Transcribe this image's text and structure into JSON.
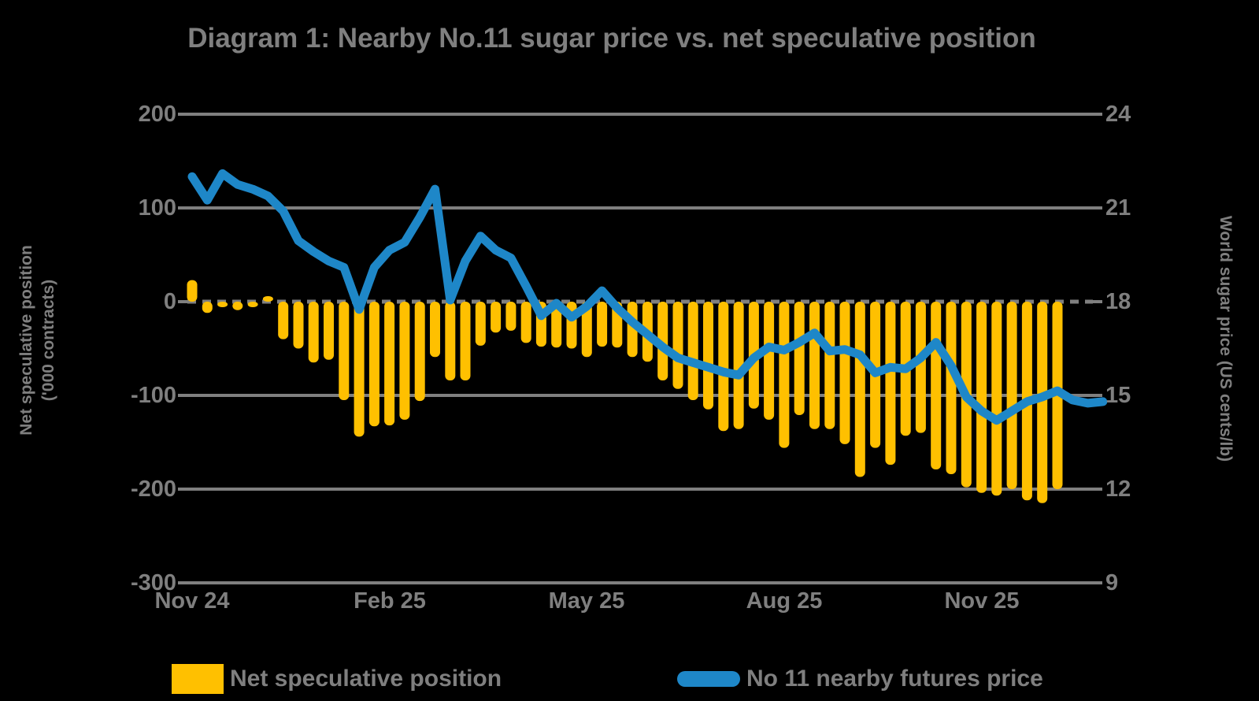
{
  "title": "Diagram 1: Nearby No.11 sugar price vs. net speculative position",
  "left_axis": {
    "title_line1": "Net speculative position",
    "title_line2": "('000 contracts)",
    "ticks": [
      "200",
      "100",
      "0",
      "-100",
      "-200",
      "-300"
    ]
  },
  "right_axis": {
    "title": "World sugar price (US cents/lb)",
    "ticks": [
      "24",
      "21",
      "18",
      "15",
      "12",
      "9"
    ]
  },
  "x_axis": {
    "labels": [
      "Nov 24",
      "Feb 25",
      "May 25",
      "Aug 25",
      "Nov 25"
    ]
  },
  "legend": [
    {
      "label": "Net speculative position",
      "type": "bar"
    },
    {
      "label": "No 11 nearby futures price",
      "type": "line"
    }
  ],
  "colors": {
    "background": "#000000",
    "bars": "#FFC000",
    "line": "#1E87C8",
    "grid": "#7F7F7F",
    "text": "#7F7F7F"
  },
  "chart_data": {
    "type": "bar",
    "subtype": "bar-and-line-dual-axis",
    "frequency": "weekly",
    "x_start": "Nov 24",
    "x_end": "Dec 25",
    "x_label_positions": [
      0,
      13,
      26,
      39,
      52
    ],
    "y_left": {
      "min": -300,
      "max": 200,
      "step": 100,
      "label": "Net speculative position ('000 contracts)"
    },
    "y_right": {
      "min": 9,
      "max": 24,
      "step": 3,
      "label": "World sugar price (US cents/lb)"
    },
    "grid": "horizontal-solid, zero-line-dashed",
    "legend_position": "bottom",
    "bar_series": {
      "name": "Net speculative position",
      "unit": "'000 contracts",
      "axis": "left",
      "values": [
        23,
        -12,
        -2,
        -9,
        -3,
        5,
        -40,
        -50,
        -65,
        -62,
        -105,
        -144,
        -133,
        -132,
        -126,
        -106,
        -59,
        -84,
        -84,
        -47,
        -33,
        -31,
        -44,
        -48,
        -49,
        -50,
        -59,
        -48,
        -49,
        -59,
        -64,
        -84,
        -93,
        -105,
        -115,
        -138,
        -136,
        -114,
        -126,
        -156,
        -121,
        -136,
        -136,
        -152,
        -187,
        -156,
        -174,
        -143,
        -140,
        -179,
        -184,
        -198,
        -204,
        -207,
        -200,
        -212,
        -215,
        -200
      ]
    },
    "line_series": {
      "name": "No 11 nearby futures price",
      "unit": "US cents/lb",
      "axis": "right",
      "values": [
        22.0,
        21.25,
        22.1,
        21.75,
        21.6,
        21.38,
        20.9,
        19.95,
        19.6,
        19.3,
        19.1,
        17.75,
        19.1,
        19.65,
        19.9,
        20.7,
        21.6,
        18.05,
        19.3,
        20.1,
        19.65,
        19.4,
        18.5,
        17.55,
        17.95,
        17.5,
        17.85,
        18.35,
        17.8,
        17.35,
        16.95,
        16.55,
        16.2,
        16.05,
        15.9,
        15.75,
        15.65,
        16.2,
        16.55,
        16.45,
        16.7,
        17.0,
        16.42,
        16.47,
        16.3,
        15.72,
        15.9,
        15.85,
        16.2,
        16.7,
        15.95,
        14.95,
        14.5,
        14.2,
        14.5,
        14.8,
        14.95,
        15.15,
        14.85,
        14.75,
        14.8
      ]
    }
  }
}
